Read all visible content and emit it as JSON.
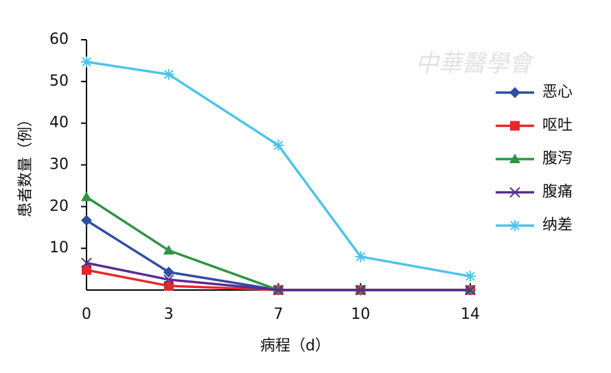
{
  "chart_data": {
    "type": "line",
    "watermark": "中華醫學會",
    "xlabel": "病程（d）",
    "ylabel": "患者数量（例）",
    "x": [
      0,
      3,
      7,
      10,
      14
    ],
    "xlim": [
      0,
      14
    ],
    "xticks": [
      0,
      3,
      7,
      10,
      14
    ],
    "ylim": [
      0,
      60
    ],
    "yticks": [
      10,
      20,
      30,
      40,
      50,
      60
    ],
    "legend": "right",
    "series": [
      {
        "name": "恶心",
        "color": "#2f4ea3",
        "marker": "diamond",
        "values": [
          16.7,
          4.3,
          0,
          0,
          0
        ]
      },
      {
        "name": "呕吐",
        "color": "#e8262b",
        "marker": "square",
        "values": [
          4.8,
          1,
          0,
          0,
          0
        ]
      },
      {
        "name": "腹泻",
        "color": "#2e9444",
        "marker": "triangle",
        "values": [
          22.3,
          9.5,
          0,
          0,
          0
        ]
      },
      {
        "name": "腹痛",
        "color": "#5a2d8f",
        "marker": "x",
        "values": [
          6.5,
          2.5,
          0,
          0,
          0
        ]
      },
      {
        "name": "纳差",
        "color": "#4dc3ea",
        "marker": "star",
        "values": [
          54.7,
          51.7,
          34.7,
          8,
          3.3
        ]
      }
    ]
  }
}
